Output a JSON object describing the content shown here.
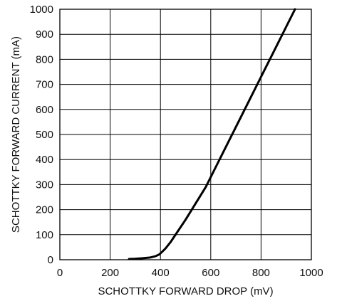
{
  "chart_data": {
    "type": "line",
    "title": "",
    "xlabel": "SCHOTTKY FORWARD DROP (mV)",
    "ylabel": "SCHOTTKY FORWARD CURRENT (mA)",
    "xlim": [
      0,
      1000
    ],
    "ylim": [
      0,
      1000
    ],
    "x_ticks": [
      0,
      200,
      400,
      600,
      800,
      1000
    ],
    "y_ticks": [
      0,
      100,
      200,
      300,
      400,
      500,
      600,
      700,
      800,
      900,
      1000
    ],
    "x_tick_labels": [
      "0",
      "200",
      "400",
      "600",
      "800",
      "1000"
    ],
    "y_tick_labels": [
      "0",
      "100",
      "200",
      "300",
      "400",
      "500",
      "600",
      "700",
      "800",
      "900",
      "1000"
    ],
    "grid": true,
    "series": [
      {
        "x": [
          275,
          300,
          330,
          360,
          380,
          395,
          405,
          420,
          440,
          470,
          500,
          540,
          580,
          620,
          660,
          700,
          740,
          780,
          820,
          860,
          900,
          935
        ],
        "y": [
          3,
          4,
          6,
          9,
          14,
          21,
          30,
          45,
          70,
          115,
          160,
          225,
          290,
          370,
          450,
          530,
          610,
          690,
          770,
          850,
          930,
          1000
        ]
      }
    ]
  }
}
